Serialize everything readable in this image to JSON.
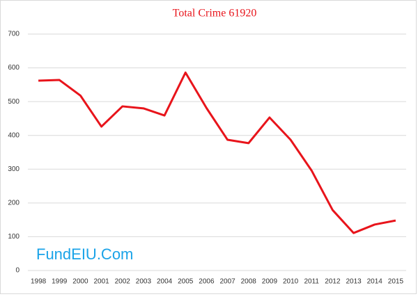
{
  "chart_data": {
    "type": "line",
    "title": "Total Crime 61920",
    "watermark": "FundEIU.Com",
    "categories": [
      "1998",
      "1999",
      "2000",
      "2001",
      "2002",
      "2003",
      "2004",
      "2005",
      "2006",
      "2007",
      "2008",
      "2009",
      "2010",
      "2011",
      "2012",
      "2013",
      "2014",
      "2015"
    ],
    "series": [
      {
        "name": "Total Crime",
        "color": "#e8141b",
        "values": [
          562,
          564,
          518,
          426,
          486,
          480,
          459,
          586,
          481,
          387,
          377,
          453,
          387,
          296,
          179,
          111,
          136,
          148
        ]
      }
    ],
    "ylim": [
      0,
      700
    ],
    "yticks": [
      0,
      100,
      200,
      300,
      400,
      500,
      600,
      700
    ],
    "grid": true
  }
}
